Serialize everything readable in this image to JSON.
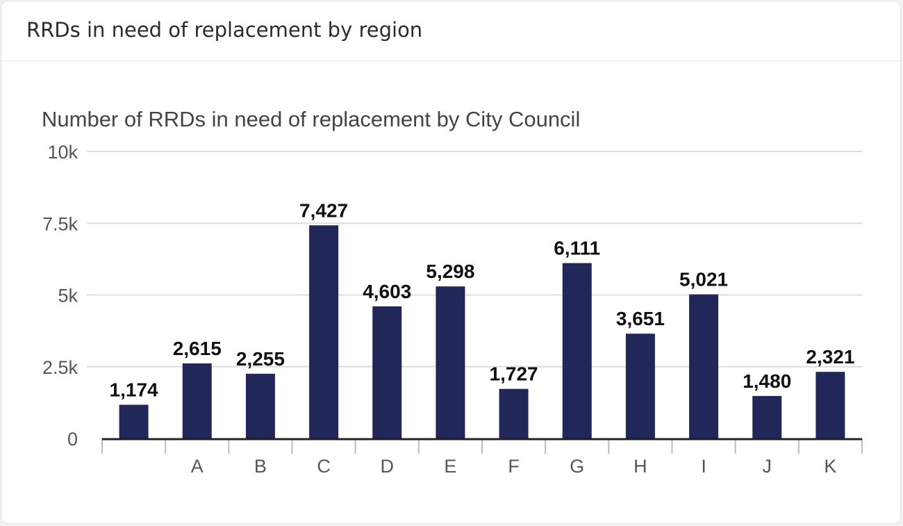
{
  "card": {
    "title": "RRDs in need of replacement by region"
  },
  "chart_data": {
    "type": "bar",
    "title": "Number of RRDs in need of replacement by City Council",
    "xlabel": "",
    "ylabel": "",
    "categories": [
      "",
      "A",
      "B",
      "C",
      "D",
      "E",
      "F",
      "G",
      "H",
      "I",
      "J",
      "K"
    ],
    "values": [
      1174,
      2615,
      2255,
      7427,
      4603,
      5298,
      1727,
      6111,
      3651,
      5021,
      1480,
      2321
    ],
    "data_labels": [
      "1,174",
      "2,615",
      "2,255",
      "7,427",
      "4,603",
      "5,298",
      "1,727",
      "6,111",
      "3,651",
      "5,021",
      "1,480",
      "2,321"
    ],
    "ylim": [
      0,
      10000
    ],
    "yticks": [
      0,
      2500,
      5000,
      7500,
      10000
    ],
    "ytick_labels": [
      "0",
      "2.5k",
      "5k",
      "7.5k",
      "10k"
    ],
    "grid": true,
    "legend": "none",
    "colors": {
      "bar": "#22275a",
      "grid": "#dddddd",
      "axis": "#222222"
    }
  }
}
